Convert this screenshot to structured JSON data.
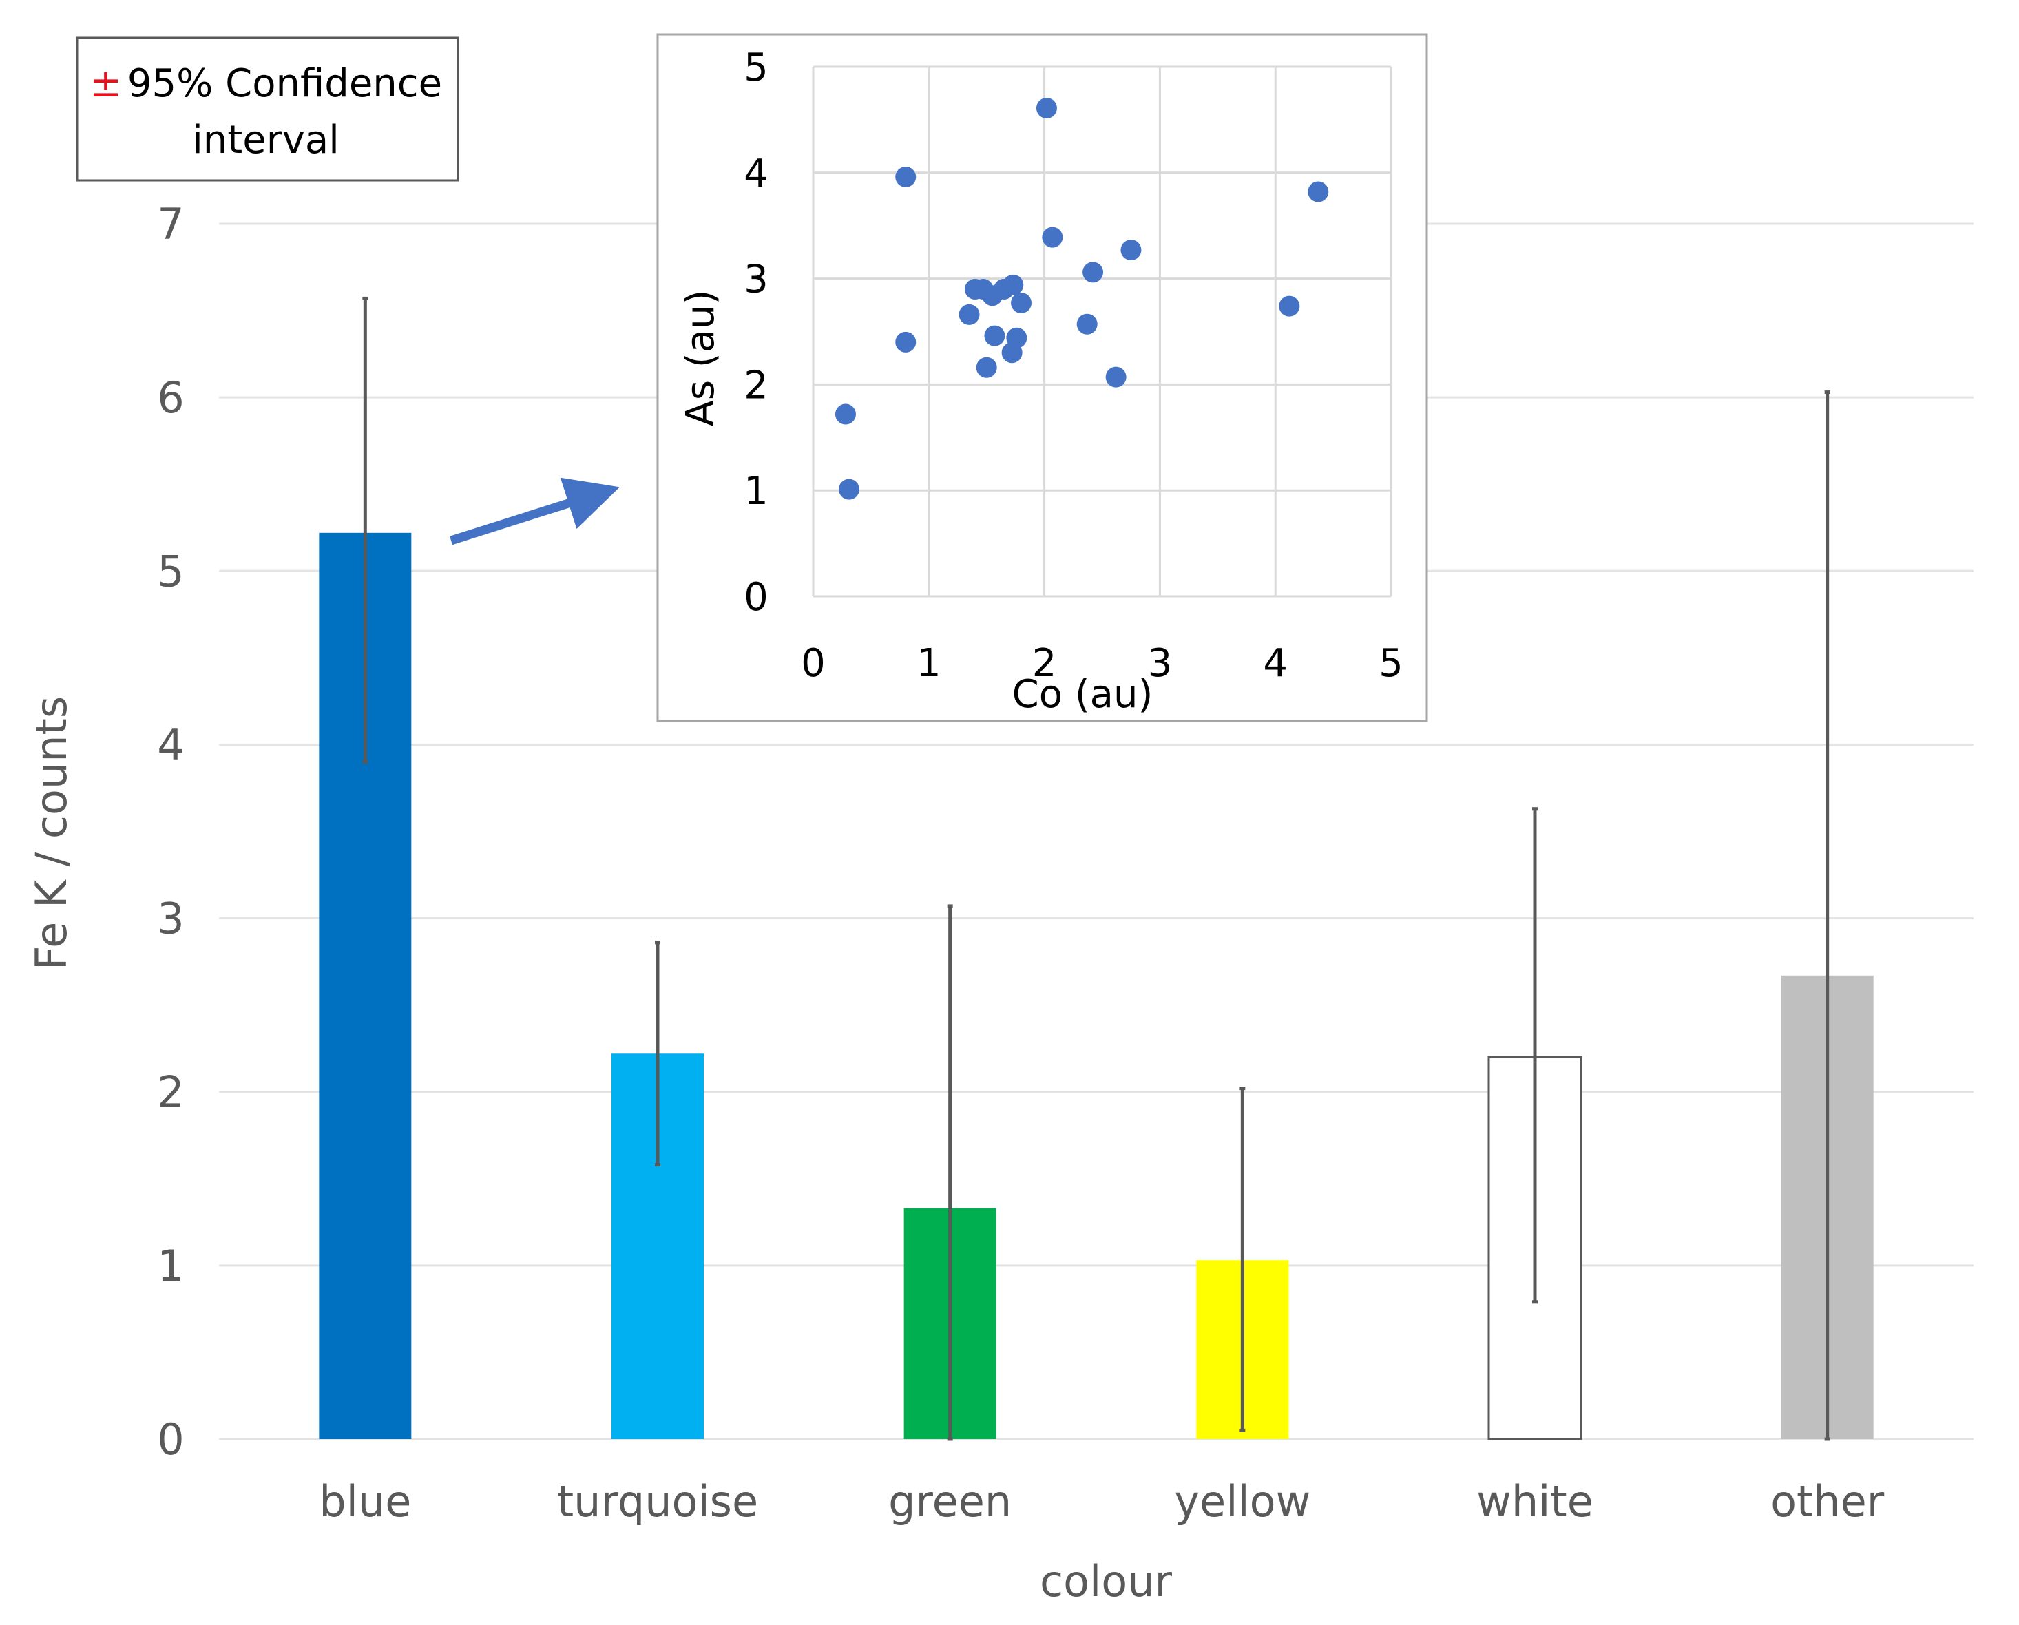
{
  "legend": {
    "symbol": "±",
    "line1": "95% Confidence",
    "line2": "interval",
    "symbol_color": "#e0141e"
  },
  "chart_data": [
    {
      "type": "bar",
      "title": "",
      "xlabel": "colour",
      "ylabel": "Fe K / counts",
      "ylim": [
        0,
        7
      ],
      "yticks": [
        "0",
        "1",
        "2",
        "3",
        "4",
        "5",
        "6",
        "7"
      ],
      "grid": true,
      "categories": [
        "blue",
        "turquoise",
        "green",
        "yellow",
        "white",
        "other"
      ],
      "values": [
        5.22,
        2.22,
        1.33,
        1.03,
        2.2,
        2.67
      ],
      "error_low": [
        3.9,
        1.58,
        0.0,
        0.05,
        0.79,
        0.0
      ],
      "error_high": [
        6.57,
        2.86,
        3.07,
        2.02,
        3.63,
        6.03
      ],
      "colors": [
        "#0070c0",
        "#00b0f0",
        "#00b050",
        "#ffff00",
        "#ffffff",
        "#bfbfbf"
      ],
      "error_color": "#595959",
      "annotation": "arrow from blue bar to inset scatter plot"
    },
    {
      "type": "scatter",
      "title": "",
      "xlabel": "Co (au)",
      "ylabel": "As (au)",
      "xlim": [
        0,
        5
      ],
      "ylim": [
        0,
        5
      ],
      "xticks": [
        "0",
        "1",
        "2",
        "3",
        "4",
        "5"
      ],
      "yticks": [
        "0",
        "1",
        "2",
        "3",
        "4",
        "5"
      ],
      "grid": true,
      "color": "#4472c4",
      "points": [
        [
          0.28,
          1.72
        ],
        [
          0.31,
          1.01
        ],
        [
          0.8,
          2.4
        ],
        [
          0.8,
          3.96
        ],
        [
          1.35,
          2.66
        ],
        [
          1.4,
          2.9
        ],
        [
          1.47,
          2.9
        ],
        [
          1.5,
          2.16
        ],
        [
          1.55,
          2.84
        ],
        [
          1.57,
          2.46
        ],
        [
          1.65,
          2.9
        ],
        [
          1.72,
          2.3
        ],
        [
          1.73,
          2.94
        ],
        [
          1.76,
          2.44
        ],
        [
          1.8,
          2.77
        ],
        [
          2.02,
          4.61
        ],
        [
          2.07,
          3.39
        ],
        [
          2.37,
          2.57
        ],
        [
          2.42,
          3.06
        ],
        [
          2.62,
          2.07
        ],
        [
          2.75,
          3.27
        ],
        [
          4.12,
          2.74
        ],
        [
          4.37,
          3.82
        ]
      ]
    }
  ]
}
